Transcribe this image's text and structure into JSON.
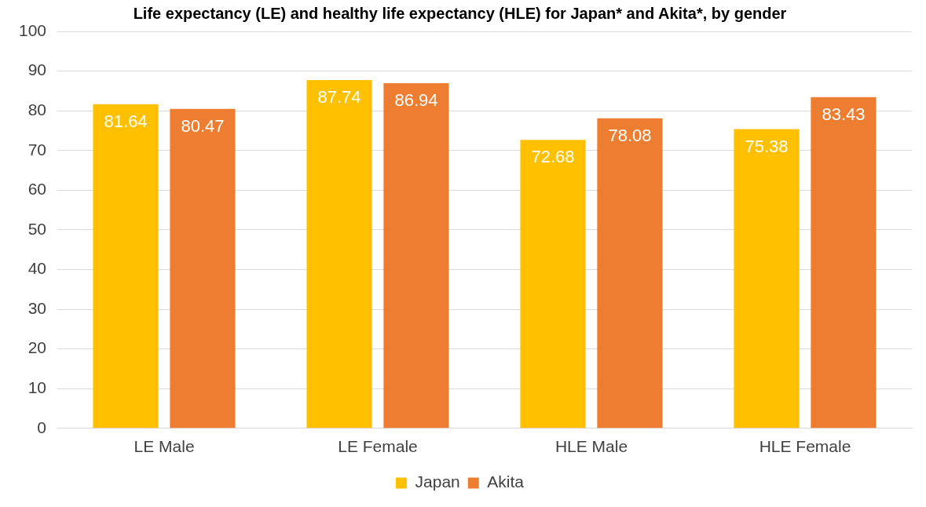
{
  "chart_data": {
    "type": "bar",
    "title": "Life expectancy (LE) and healthy life expectancy (HLE) for Japan* and Akita*, by gender",
    "categories": [
      "LE Male",
      "LE Female",
      "HLE Male",
      "HLE Female"
    ],
    "series": [
      {
        "name": "Japan",
        "color": "#ffc000",
        "values": [
          81.64,
          87.74,
          72.68,
          75.38
        ]
      },
      {
        "name": "Akita",
        "color": "#ed7d31",
        "values": [
          80.47,
          86.94,
          78.08,
          83.43
        ]
      }
    ],
    "ylim": [
      0,
      100
    ],
    "yticks": [
      0,
      10,
      20,
      30,
      40,
      50,
      60,
      70,
      80,
      90,
      100
    ],
    "grid": "y",
    "legend": "bottom",
    "data_labels": true
  }
}
